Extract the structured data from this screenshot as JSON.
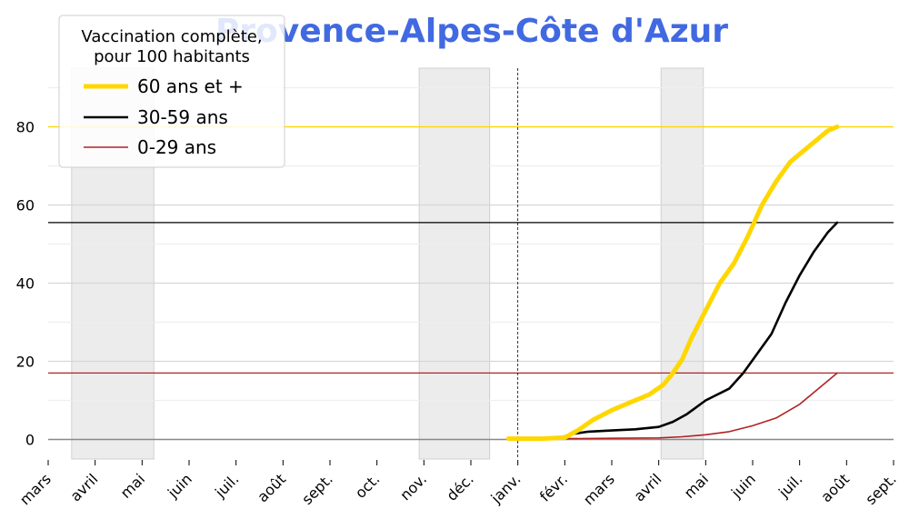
{
  "chart_data": {
    "type": "line",
    "title": "Provence-Alpes-Côte d'Azur",
    "title_color": "#4169e1",
    "xlabel": "",
    "ylabel": "",
    "x_tick_labels": [
      "mars",
      "avril",
      "mai",
      "juin",
      "juil.",
      "août",
      "sept.",
      "oct.",
      "nov.",
      "déc.",
      "janv.",
      "févr.",
      "mars",
      "avril",
      "mai",
      "juin",
      "juil.",
      "août",
      "sept."
    ],
    "y_ticks": [
      0,
      20,
      40,
      60,
      80
    ],
    "ylim": [
      -5,
      95
    ],
    "xlim_months": [
      0,
      18
    ],
    "grid": "horizontal",
    "legend": {
      "title_lines": [
        "Vaccination complète,",
        "pour 100 habitants"
      ],
      "placement": "top-left"
    },
    "shaded_periods_months": [
      [
        0.5,
        2.25
      ],
      [
        7.9,
        9.4
      ],
      [
        13.05,
        13.95
      ]
    ],
    "vertical_line_month": 10,
    "series": [
      {
        "name": "60 ans et +",
        "color": "#FFD700",
        "reference_value": 80,
        "points": [
          [
            9.8,
            0.2
          ],
          [
            10.5,
            0.2
          ],
          [
            11.0,
            0.5
          ],
          [
            11.3,
            2.5
          ],
          [
            11.6,
            5
          ],
          [
            12.0,
            7.5
          ],
          [
            12.4,
            9.5
          ],
          [
            12.8,
            11.5
          ],
          [
            13.1,
            14
          ],
          [
            13.3,
            17
          ],
          [
            13.5,
            20.5
          ],
          [
            13.7,
            26
          ],
          [
            14.0,
            33
          ],
          [
            14.3,
            40
          ],
          [
            14.6,
            45
          ],
          [
            14.9,
            52
          ],
          [
            15.2,
            60
          ],
          [
            15.5,
            66
          ],
          [
            15.8,
            71
          ],
          [
            16.1,
            74
          ],
          [
            16.4,
            77
          ],
          [
            16.6,
            79
          ],
          [
            16.8,
            80
          ]
        ]
      },
      {
        "name": "30-59 ans",
        "color": "#000000",
        "reference_value": 55.5,
        "points": [
          [
            9.8,
            0.1
          ],
          [
            10.5,
            0.2
          ],
          [
            10.9,
            0.5
          ],
          [
            11.2,
            1.5
          ],
          [
            11.5,
            2
          ],
          [
            12.0,
            2.3
          ],
          [
            12.5,
            2.6
          ],
          [
            13.0,
            3.2
          ],
          [
            13.3,
            4.5
          ],
          [
            13.6,
            6.5
          ],
          [
            14.0,
            10
          ],
          [
            14.5,
            13
          ],
          [
            14.8,
            17
          ],
          [
            15.1,
            22
          ],
          [
            15.4,
            27
          ],
          [
            15.7,
            35
          ],
          [
            16.0,
            42
          ],
          [
            16.3,
            48
          ],
          [
            16.6,
            53
          ],
          [
            16.8,
            55.5
          ]
        ]
      },
      {
        "name": "0-29 ans",
        "color": "#B22222",
        "reference_value": 17,
        "points": [
          [
            9.8,
            0
          ],
          [
            11.0,
            0.2
          ],
          [
            12.0,
            0.3
          ],
          [
            13.0,
            0.4
          ],
          [
            13.5,
            0.7
          ],
          [
            14.0,
            1.2
          ],
          [
            14.5,
            2
          ],
          [
            15.0,
            3.5
          ],
          [
            15.5,
            5.5
          ],
          [
            16.0,
            9
          ],
          [
            16.4,
            13
          ],
          [
            16.7,
            16
          ],
          [
            16.8,
            17
          ]
        ]
      }
    ]
  }
}
